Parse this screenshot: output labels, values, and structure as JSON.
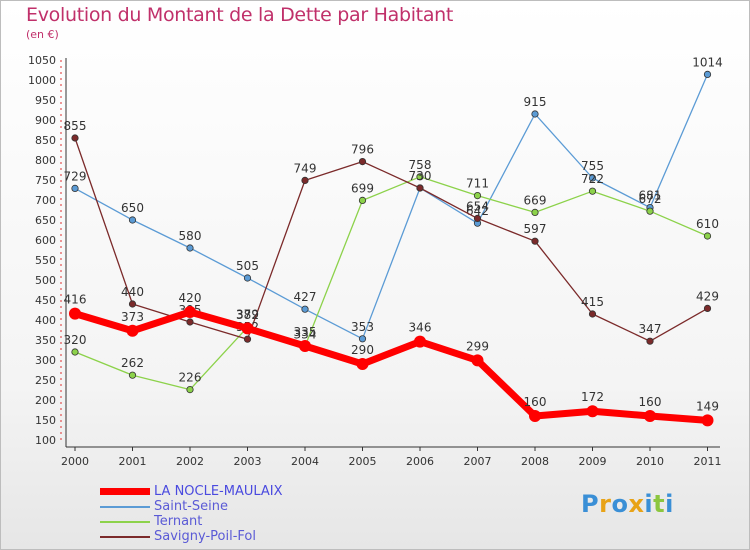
{
  "title": "Evolution du Montant de la Dette par Habitant",
  "subtitle": "(en €)",
  "brand": {
    "letters": [
      "P",
      "r",
      "o",
      "x",
      "i",
      "t",
      "i"
    ],
    "colors": [
      "#3a8fd6",
      "#e8a317",
      "#3a8fd6",
      "#e8a317",
      "#3a8fd6",
      "#8cc63f",
      "#3a8fd6"
    ]
  },
  "chart_data": {
    "type": "line",
    "categories": [
      "2000",
      "2001",
      "2002",
      "2003",
      "2004",
      "2005",
      "2006",
      "2007",
      "2008",
      "2009",
      "2010",
      "2011"
    ],
    "ylim": [
      100,
      1050
    ],
    "yticks": [
      100,
      150,
      200,
      250,
      300,
      350,
      400,
      450,
      500,
      550,
      600,
      650,
      700,
      750,
      800,
      850,
      900,
      950,
      1000,
      1050
    ],
    "grid": false,
    "legend_position": "bottom-left",
    "series": [
      {
        "name": "Saint-Seine",
        "color": "#5b9bd5",
        "values": [
          729,
          650,
          580,
          505,
          427,
          353,
          730,
          642,
          915,
          755,
          681,
          1014
        ],
        "labels": [
          "729",
          "650",
          "580",
          "505",
          "427",
          "353",
          "",
          "642",
          "915",
          "755",
          "681",
          "1014"
        ]
      },
      {
        "name": "Ternant",
        "color": "#8cd24a",
        "values": [
          320,
          262,
          226,
          382,
          334,
          699,
          758,
          711,
          669,
          722,
          672,
          610
        ],
        "labels": [
          "320",
          "262",
          "226",
          "382",
          "334",
          "699",
          "758",
          "711",
          "669",
          "722",
          "672",
          "610"
        ]
      },
      {
        "name": "Savigny-Poil-Fol",
        "color": "#7b2a2a",
        "values": [
          855,
          440,
          395,
          352,
          749,
          796,
          730,
          654,
          597,
          415,
          347,
          429
        ],
        "labels": [
          "855",
          "440",
          "395",
          "352",
          "749",
          "796",
          "730",
          "654",
          "597",
          "415",
          "347",
          "429"
        ]
      },
      {
        "name": "LA NOCLE-MAULAIX",
        "color": "#ff0000",
        "values": [
          416,
          373,
          420,
          379,
          335,
          290,
          346,
          299,
          160,
          172,
          160,
          149
        ],
        "labels": [
          "416",
          "373",
          "420",
          "379",
          "335",
          "290",
          "346",
          "299",
          "160",
          "172",
          "160",
          "149"
        ]
      }
    ],
    "legend": [
      "LA NOCLE-MAULAIX",
      "Saint-Seine",
      "Ternant",
      "Savigny-Poil-Fol"
    ]
  }
}
